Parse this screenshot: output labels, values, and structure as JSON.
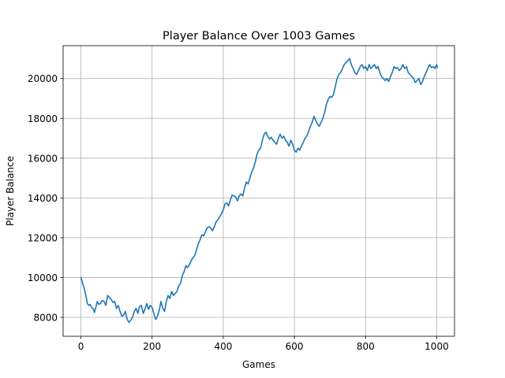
{
  "chart_data": {
    "type": "line",
    "title": "Player Balance Over 1003 Games",
    "xlabel": "Games",
    "ylabel": "Player Balance",
    "xlim": [
      -50,
      1050
    ],
    "ylim": [
      7050,
      21650
    ],
    "xticks": [
      0,
      200,
      400,
      600,
      800,
      1000
    ],
    "yticks": [
      8000,
      10000,
      12000,
      14000,
      16000,
      18000,
      20000
    ],
    "grid": true,
    "series": [
      {
        "color": "#1f77b4",
        "x": [
          0,
          5,
          10,
          15,
          18,
          22,
          26,
          30,
          34,
          38,
          42,
          46,
          50,
          55,
          60,
          65,
          70,
          75,
          80,
          85,
          90,
          95,
          100,
          105,
          110,
          115,
          120,
          125,
          130,
          135,
          140,
          145,
          150,
          155,
          160,
          165,
          170,
          175,
          180,
          185,
          190,
          195,
          200,
          205,
          210,
          215,
          220,
          225,
          230,
          235,
          240,
          245,
          250,
          255,
          260,
          265,
          270,
          275,
          280,
          285,
          290,
          295,
          300,
          305,
          310,
          315,
          320,
          325,
          330,
          335,
          340,
          345,
          350,
          355,
          360,
          365,
          370,
          375,
          380,
          385,
          390,
          395,
          400,
          405,
          410,
          415,
          420,
          425,
          430,
          435,
          440,
          445,
          450,
          455,
          460,
          465,
          470,
          475,
          480,
          485,
          490,
          495,
          500,
          505,
          510,
          515,
          520,
          525,
          530,
          535,
          540,
          545,
          550,
          555,
          560,
          565,
          570,
          575,
          580,
          585,
          590,
          595,
          600,
          605,
          610,
          615,
          620,
          625,
          630,
          635,
          640,
          645,
          650,
          655,
          660,
          665,
          670,
          675,
          680,
          685,
          690,
          695,
          700,
          705,
          710,
          715,
          720,
          725,
          730,
          735,
          740,
          745,
          750,
          755,
          760,
          765,
          770,
          775,
          780,
          785,
          790,
          795,
          800,
          805,
          810,
          815,
          820,
          825,
          830,
          835,
          840,
          845,
          850,
          855,
          860,
          865,
          870,
          875,
          880,
          885,
          890,
          895,
          900,
          905,
          910,
          915,
          920,
          925,
          930,
          935,
          940,
          945,
          950,
          955,
          960,
          965,
          970,
          975,
          980,
          985,
          990,
          995,
          1000,
          1002
        ],
        "y": [
          10000,
          9700,
          9400,
          9000,
          8700,
          8600,
          8650,
          8500,
          8450,
          8250,
          8500,
          8800,
          8650,
          8700,
          8850,
          8800,
          8600,
          9100,
          9000,
          8900,
          8750,
          8800,
          8450,
          8600,
          8300,
          8050,
          8100,
          8300,
          7900,
          7750,
          7850,
          8000,
          8300,
          8450,
          8200,
          8550,
          8600,
          8200,
          8400,
          8700,
          8400,
          8600,
          8500,
          8200,
          7900,
          8050,
          8350,
          8800,
          8450,
          8300,
          8800,
          9100,
          8950,
          9300,
          9100,
          9200,
          9300,
          9600,
          9700,
          10100,
          10300,
          10600,
          10500,
          10650,
          10850,
          11000,
          11100,
          11400,
          11700,
          11900,
          12150,
          12100,
          12300,
          12500,
          12550,
          12500,
          12350,
          12550,
          12800,
          12900,
          13050,
          13200,
          13400,
          13700,
          13750,
          13600,
          13900,
          14150,
          14100,
          14050,
          13850,
          14100,
          14200,
          14100,
          14500,
          14800,
          14700,
          15000,
          15300,
          15500,
          15800,
          16200,
          16400,
          16500,
          16900,
          17200,
          17300,
          17100,
          16950,
          17050,
          16900,
          16800,
          16700,
          17000,
          17200,
          17000,
          17100,
          16900,
          16800,
          16600,
          16900,
          16700,
          16400,
          16300,
          16500,
          16400,
          16600,
          16800,
          17000,
          17100,
          17350,
          17600,
          17800,
          18100,
          17900,
          17700,
          17600,
          17800,
          18000,
          18300,
          18700,
          18950,
          19100,
          19050,
          19200,
          19600,
          20000,
          20200,
          20300,
          20500,
          20700,
          20800,
          20900,
          21000,
          20700,
          20500,
          20300,
          20200,
          20400,
          20600,
          20700,
          20500,
          20600,
          20400,
          20700,
          20500,
          20600,
          20700,
          20500,
          20600,
          20300,
          20100,
          20000,
          19900,
          20000,
          19850,
          20100,
          20300,
          20600,
          20500,
          20550,
          20400,
          20500,
          20700,
          20500,
          20600,
          20300,
          20200,
          20100,
          20000,
          19800,
          19900,
          20000,
          19700,
          19850,
          20100,
          20300,
          20500,
          20700,
          20550,
          20600,
          20500,
          20700,
          20550
        ]
      }
    ]
  }
}
